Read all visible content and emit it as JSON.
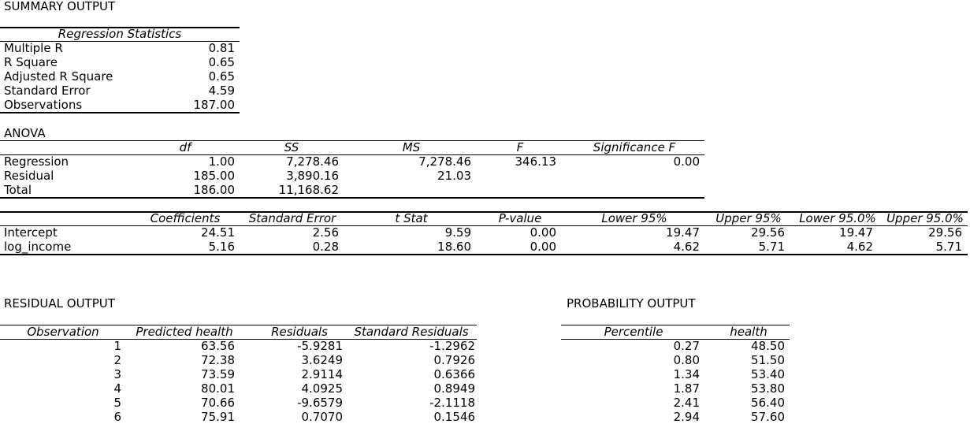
{
  "summary_title": "SUMMARY OUTPUT",
  "regression_stats": {
    "header": "Regression Statistics",
    "rows": [
      {
        "label": "Multiple R",
        "value": "0.81"
      },
      {
        "label": "R Square",
        "value": "0.65"
      },
      {
        "label": "Adjusted R Square",
        "value": "0.65"
      },
      {
        "label": "Standard Error",
        "value": "4.59"
      },
      {
        "label": "Observations",
        "value": "187.00"
      }
    ]
  },
  "anova": {
    "title": "ANOVA",
    "headers": [
      "df",
      "SS",
      "MS",
      "F",
      "Significance F"
    ],
    "rows": [
      {
        "label": "Regression",
        "df": "1.00",
        "ss": "7,278.46",
        "ms": "7,278.46",
        "f": "346.13",
        "sig": "0.00"
      },
      {
        "label": "Residual",
        "df": "185.00",
        "ss": "3,890.16",
        "ms": "21.03",
        "f": "",
        "sig": ""
      },
      {
        "label": "Total",
        "df": "186.00",
        "ss": "11,168.62",
        "ms": "",
        "f": "",
        "sig": ""
      }
    ]
  },
  "coefficients": {
    "headers": [
      "Coefficients",
      "Standard Error",
      "t Stat",
      "P-value",
      "Lower 95%",
      "Upper 95%",
      "Lower 95.0%",
      "Upper 95.0%"
    ],
    "rows": [
      {
        "label": "Intercept",
        "vals": [
          "24.51",
          "2.56",
          "9.59",
          "0.00",
          "19.47",
          "29.56",
          "19.47",
          "29.56"
        ]
      },
      {
        "label": "log_income",
        "vals": [
          "5.16",
          "0.28",
          "18.60",
          "0.00",
          "4.62",
          "5.71",
          "4.62",
          "5.71"
        ]
      }
    ]
  },
  "residual_output": {
    "title": "RESIDUAL OUTPUT",
    "headers": [
      "Observation",
      "Predicted health",
      "Residuals",
      "Standard Residuals"
    ],
    "rows": [
      [
        "1",
        "63.56",
        "-5.9281",
        "-1.2962"
      ],
      [
        "2",
        "72.38",
        "3.6249",
        "0.7926"
      ],
      [
        "3",
        "73.59",
        "2.9114",
        "0.6366"
      ],
      [
        "4",
        "80.01",
        "4.0925",
        "0.8949"
      ],
      [
        "5",
        "70.66",
        "-9.6579",
        "-2.1118"
      ],
      [
        "6",
        "75.91",
        "0.7070",
        "0.1546"
      ]
    ]
  },
  "probability_output": {
    "title": "PROBABILITY OUTPUT",
    "headers": [
      "Percentile",
      "health"
    ],
    "rows": [
      [
        "0.27",
        "48.50"
      ],
      [
        "0.80",
        "51.50"
      ],
      [
        "1.34",
        "53.40"
      ],
      [
        "1.87",
        "53.80"
      ],
      [
        "2.41",
        "56.40"
      ],
      [
        "2.94",
        "57.60"
      ]
    ]
  }
}
